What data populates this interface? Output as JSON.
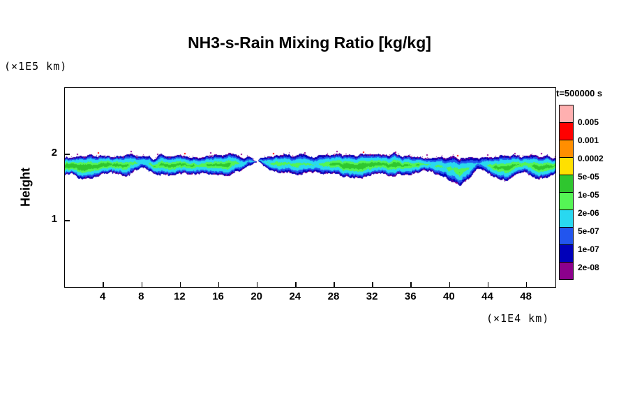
{
  "chart_data": {
    "type": "heatmap",
    "title": "NH3-s-Rain Mixing Ratio [kg/kg]",
    "ylabel": "Height",
    "y_axis_unit": "(×1E5 km)",
    "x_axis_unit": "(×1E4 km)",
    "legend_title": "t=500000 s",
    "xlim": [
      0,
      51
    ],
    "ylim": [
      0,
      3
    ],
    "xticks": [
      4,
      8,
      12,
      16,
      20,
      24,
      28,
      32,
      36,
      40,
      44,
      48
    ],
    "yticks": [
      1,
      2
    ],
    "colorbar": {
      "cells_top_to_bottom": [
        "#ffb0b0",
        "#ff0000",
        "#ff8e00",
        "#ffe000",
        "#2fc62f",
        "#55f555",
        "#29d8f0",
        "#2255ee",
        "#0000b9",
        "#8c008c"
      ],
      "boundary_labels_top_to_bottom": [
        "0.005",
        "0.001",
        "0.0002",
        "5e-05",
        "1e-05",
        "2e-06",
        "5e-07",
        "1e-07",
        "2e-08"
      ]
    },
    "band": {
      "description": "rain mixing-ratio layer centered near height 1.8 (×1E5 km), sampled every 1 (×1E4 km)",
      "x_step": 1,
      "top": [
        1.94,
        1.96,
        1.99,
        2.0,
        1.98,
        1.97,
        1.99,
        2.01,
        1.96,
        1.95,
        1.98,
        2.0,
        1.99,
        1.97,
        1.96,
        1.99,
        2.01,
        2.0,
        1.98,
        1.95,
        1.92,
        1.97,
        1.99,
        1.98,
        2.0,
        1.99,
        1.97,
        1.99,
        2.01,
        2.0,
        1.99,
        2.0,
        1.99,
        1.98,
        2.0,
        1.99,
        1.98,
        1.96,
        1.95,
        1.97,
        1.96,
        1.94,
        1.96,
        1.92,
        1.96,
        1.98,
        1.99,
        1.97,
        1.96,
        1.98,
        1.97,
        1.96
      ],
      "bottom": [
        1.72,
        1.68,
        1.66,
        1.67,
        1.7,
        1.72,
        1.69,
        1.74,
        1.8,
        1.73,
        1.7,
        1.68,
        1.7,
        1.72,
        1.75,
        1.71,
        1.68,
        1.7,
        1.76,
        1.84,
        1.87,
        1.78,
        1.72,
        1.74,
        1.71,
        1.73,
        1.75,
        1.72,
        1.69,
        1.68,
        1.67,
        1.68,
        1.69,
        1.7,
        1.68,
        1.7,
        1.72,
        1.74,
        1.76,
        1.72,
        1.62,
        1.56,
        1.68,
        1.8,
        1.74,
        1.66,
        1.64,
        1.68,
        1.72,
        1.66,
        1.68,
        1.7
      ],
      "core": [
        0.85,
        0.92,
        0.95,
        0.9,
        0.85,
        0.82,
        0.85,
        0.6,
        0.35,
        0.62,
        0.82,
        0.86,
        0.8,
        0.74,
        0.6,
        0.72,
        0.86,
        0.8,
        0.58,
        0.3,
        0.2,
        0.5,
        0.62,
        0.55,
        0.6,
        0.56,
        0.5,
        0.62,
        0.8,
        0.86,
        0.9,
        0.9,
        0.86,
        0.8,
        0.85,
        0.8,
        0.75,
        0.66,
        0.55,
        0.5,
        0.56,
        0.62,
        0.5,
        0.3,
        0.6,
        0.8,
        0.85,
        0.7,
        0.6,
        0.85,
        0.8,
        0.76
      ]
    },
    "specks": [
      {
        "x": 1.2,
        "color": "#8c008c"
      },
      {
        "x": 3.4,
        "color": "#ff0000"
      },
      {
        "x": 6.8,
        "color": "#8c008c"
      },
      {
        "x": 9.6,
        "color": "#8c008c"
      },
      {
        "x": 12.4,
        "color": "#ff0000"
      },
      {
        "x": 15.1,
        "color": "#8c008c"
      },
      {
        "x": 18.3,
        "color": "#8c008c"
      },
      {
        "x": 21.6,
        "color": "#ff0000"
      },
      {
        "x": 24.9,
        "color": "#8c008c"
      },
      {
        "x": 28.2,
        "color": "#8c008c"
      },
      {
        "x": 31.0,
        "color": "#ff0000"
      },
      {
        "x": 34.3,
        "color": "#8c008c"
      },
      {
        "x": 37.6,
        "color": "#8c008c"
      },
      {
        "x": 40.8,
        "color": "#ff0000"
      },
      {
        "x": 43.9,
        "color": "#8c008c"
      },
      {
        "x": 46.7,
        "color": "#8c008c"
      },
      {
        "x": 49.5,
        "color": "#8c008c"
      }
    ],
    "colors": {
      "background": "#ffffff",
      "axis": "#000000"
    }
  }
}
